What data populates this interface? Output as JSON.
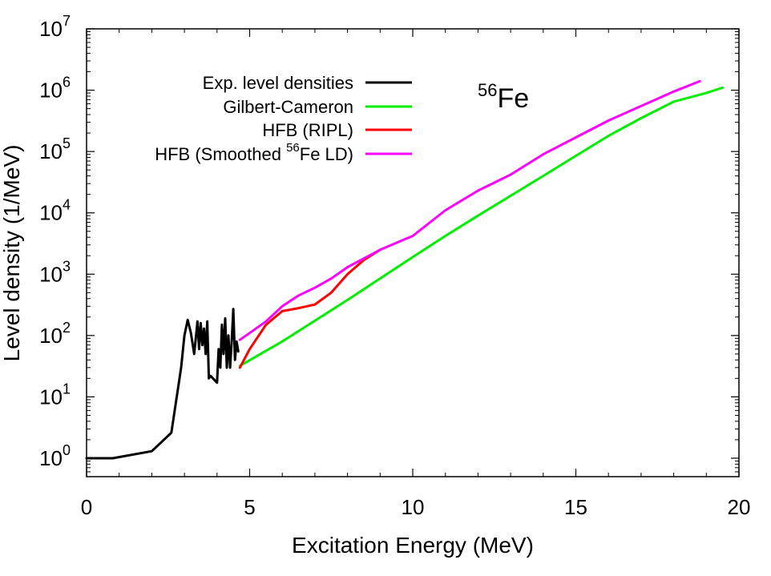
{
  "chart_data": {
    "type": "line",
    "xlabel": "Excitation Energy (MeV)",
    "ylabel": "Level density (1/MeV)",
    "xlim": [
      0,
      20
    ],
    "ylim": [
      0.5,
      10000000
    ],
    "yscale": "log",
    "x_ticks": [
      0,
      5,
      10,
      15,
      20
    ],
    "y_ticks": [
      {
        "value": 1,
        "base": "10",
        "exp": "0"
      },
      {
        "value": 10,
        "base": "10",
        "exp": "1"
      },
      {
        "value": 100,
        "base": "10",
        "exp": "2"
      },
      {
        "value": 1000,
        "base": "10",
        "exp": "3"
      },
      {
        "value": 10000,
        "base": "10",
        "exp": "4"
      },
      {
        "value": 100000,
        "base": "10",
        "exp": "5"
      },
      {
        "value": 1000000,
        "base": "10",
        "exp": "6"
      },
      {
        "value": 10000000,
        "base": "10",
        "exp": "7"
      }
    ],
    "grid": false,
    "legend_placement": "top-left",
    "annotation": {
      "sup": "56",
      "text": "Fe"
    },
    "series": [
      {
        "name": "Exp. level densities",
        "color": "#000000",
        "x": [
          0.0,
          0.8,
          2.0,
          2.6,
          2.9,
          3.0,
          3.1,
          3.2,
          3.3,
          3.4,
          3.45,
          3.5,
          3.55,
          3.6,
          3.65,
          3.7,
          3.75,
          3.8,
          4.0,
          4.05,
          4.1,
          4.15,
          4.2,
          4.25,
          4.3,
          4.35,
          4.4,
          4.45,
          4.5,
          4.55,
          4.6,
          4.65
        ],
        "y": [
          1.0,
          1.0,
          1.3,
          2.6,
          30,
          100,
          180,
          110,
          50,
          170,
          60,
          160,
          70,
          130,
          50,
          170,
          20,
          22,
          17,
          60,
          30,
          150,
          50,
          190,
          30,
          100,
          30,
          80,
          270,
          40,
          80,
          55
        ]
      },
      {
        "name": "Gilbert-Cameron",
        "color": "#00ee00",
        "x": [
          4.7,
          6.0,
          8.0,
          10.0,
          11.0,
          12.0,
          13.0,
          14.0,
          15.0,
          16.0,
          17.0,
          18.0,
          19.0,
          19.5
        ],
        "y": [
          32,
          80,
          380,
          1900,
          4200,
          9000,
          19000,
          40000,
          85000,
          180000,
          350000,
          650000,
          900000,
          1100000
        ]
      },
      {
        "name": "HFB (RIPL)",
        "color": "#ff0000",
        "x": [
          4.7,
          5.0,
          5.5,
          6.0,
          6.5,
          7.0,
          7.5,
          8.0,
          8.5,
          9.0
        ],
        "y": [
          30,
          60,
          150,
          250,
          280,
          320,
          500,
          1000,
          1700,
          2500
        ]
      },
      {
        "name": "HFB (Smoothed ",
        "name_sup": "56",
        "name_rest": "Fe LD)",
        "color": "#ff00ff",
        "x": [
          4.7,
          5.0,
          5.5,
          6.0,
          6.5,
          7.0,
          7.5,
          8.0,
          8.5,
          9.0,
          10.0,
          11.0,
          12.0,
          13.0,
          14.0,
          15.0,
          16.0,
          17.0,
          18.0,
          18.8
        ],
        "y": [
          85,
          110,
          170,
          300,
          450,
          600,
          850,
          1300,
          1800,
          2500,
          4200,
          11000,
          23000,
          42000,
          90000,
          170000,
          320000,
          550000,
          950000,
          1400000
        ]
      }
    ]
  }
}
